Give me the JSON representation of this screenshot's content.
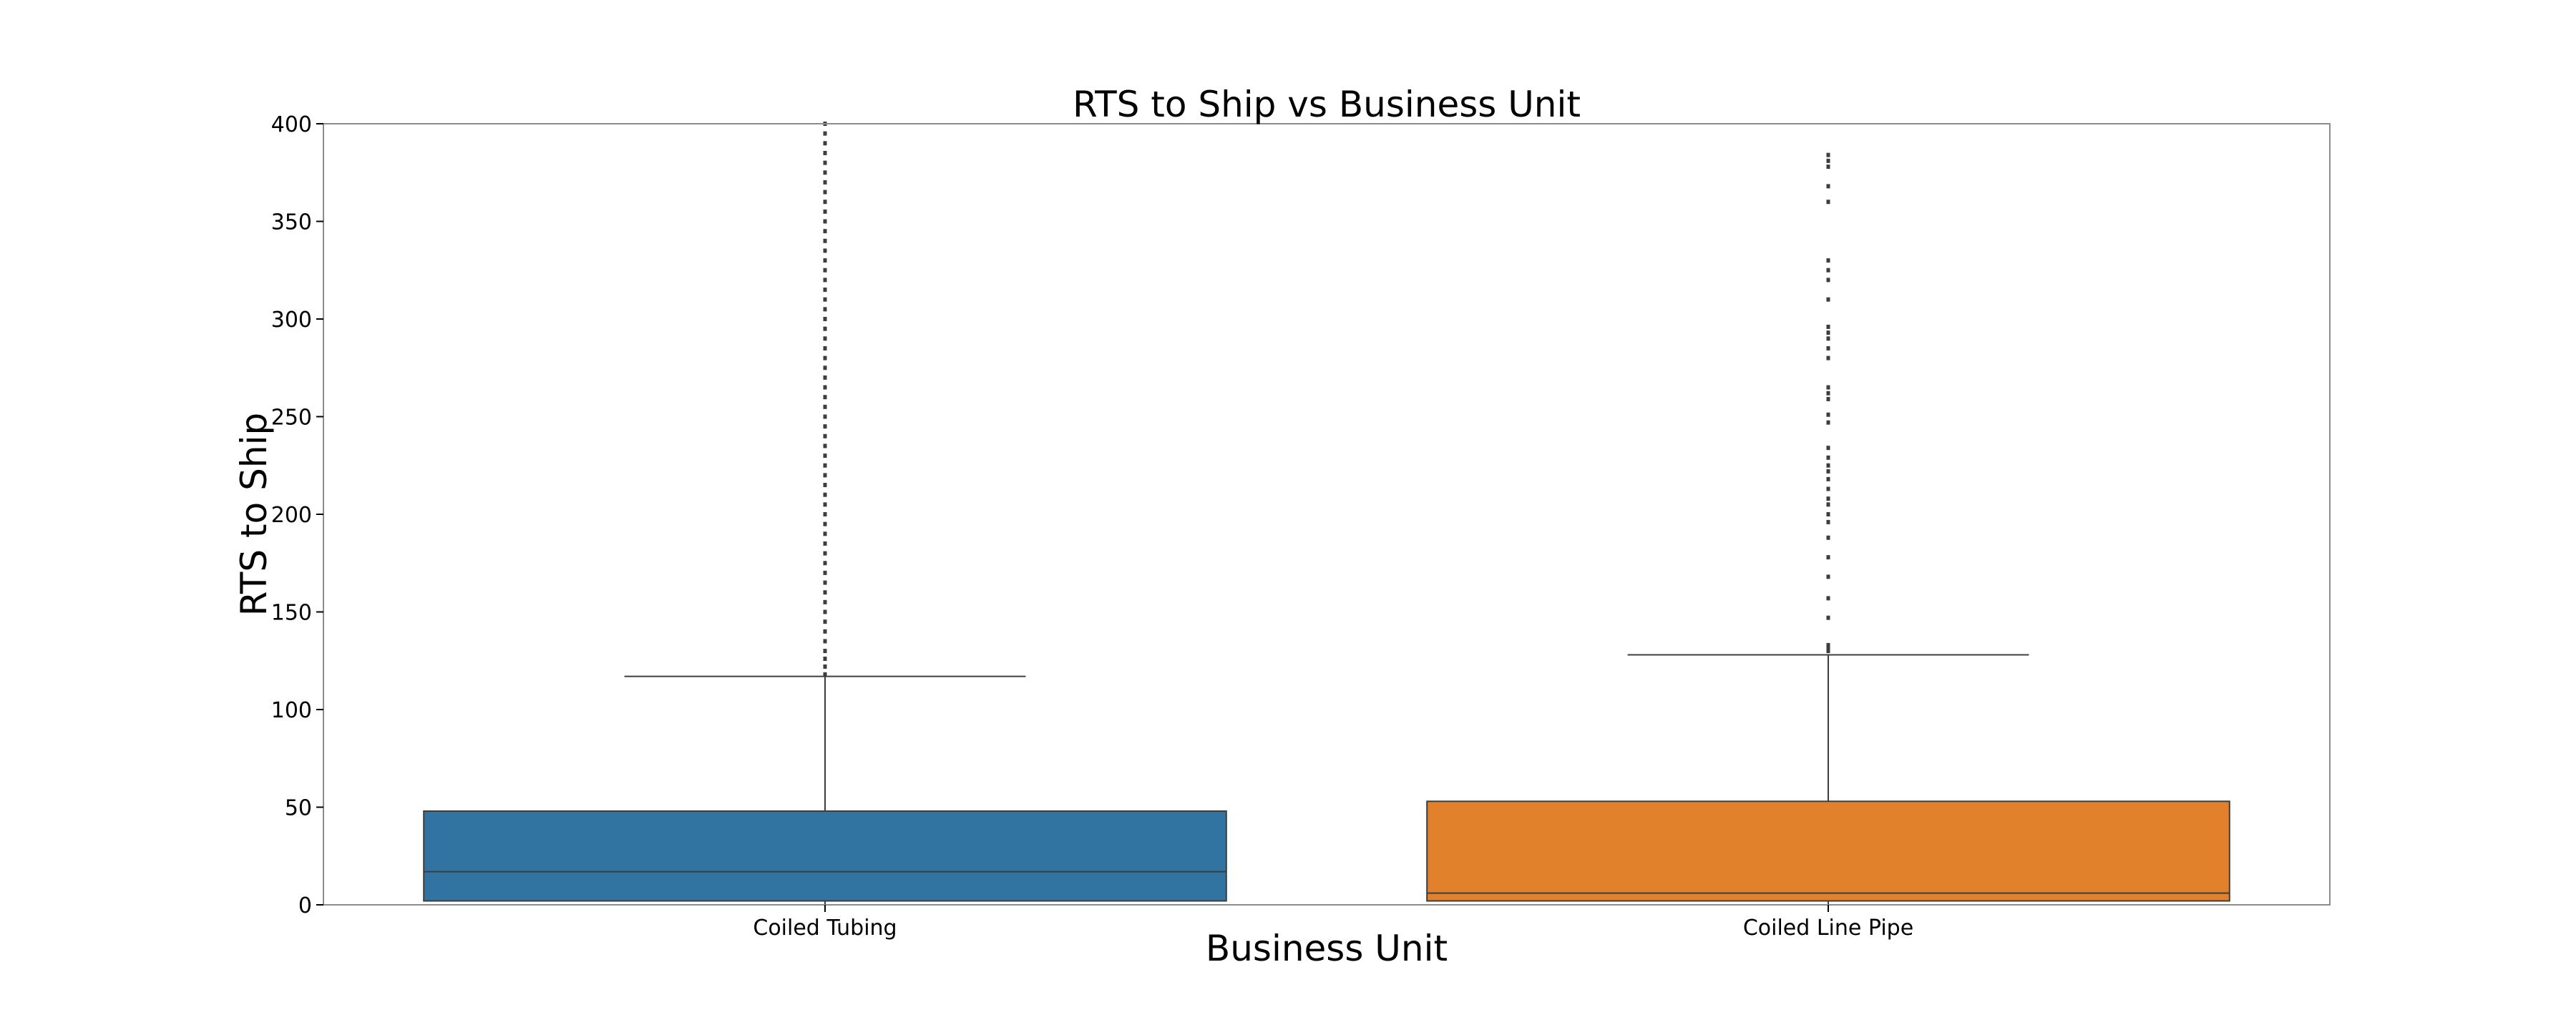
{
  "chart_data": {
    "type": "box",
    "title": "RTS to Ship vs Business Unit",
    "xlabel": "Business Unit",
    "ylabel": "RTS to Ship",
    "ylim": [
      0,
      400
    ],
    "yticks": [
      0,
      50,
      100,
      150,
      200,
      250,
      300,
      350,
      400
    ],
    "categories": [
      "Coiled Tubing",
      "Coiled Line Pipe"
    ],
    "series": [
      {
        "category": "Coiled Tubing",
        "color": "#3274a1",
        "whisker_low": 0,
        "q1": 2,
        "median": 17,
        "q3": 48,
        "whisker_high": 117,
        "outliers": [
          118,
          122,
          126,
          130,
          135,
          140,
          145,
          150,
          155,
          160,
          165,
          170,
          175,
          180,
          185,
          190,
          195,
          200,
          205,
          210,
          215,
          220,
          225,
          230,
          235,
          240,
          245,
          250,
          255,
          260,
          265,
          270,
          275,
          280,
          285,
          290,
          295,
          300,
          305,
          310,
          315,
          320,
          325,
          330,
          335,
          340,
          345,
          350,
          355,
          360,
          365,
          370,
          375,
          380,
          385,
          390,
          395,
          400
        ]
      },
      {
        "category": "Coiled Line Pipe",
        "color": "#e1812c",
        "whisker_low": 0,
        "q1": 2,
        "median": 6,
        "q3": 53,
        "whisker_high": 128,
        "outliers": [
          130,
          132,
          133,
          147,
          157,
          168,
          178,
          188,
          196,
          200,
          205,
          208,
          213,
          218,
          222,
          225,
          229,
          234,
          247,
          251,
          259,
          262,
          265,
          280,
          285,
          290,
          293,
          296,
          310,
          320,
          325,
          330,
          360,
          368,
          378,
          381,
          384
        ]
      }
    ]
  }
}
